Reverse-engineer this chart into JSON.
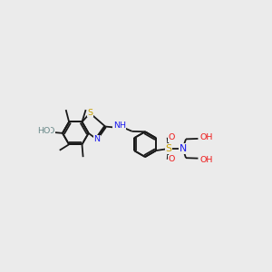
{
  "bg_color": "#ebebeb",
  "bond_color": "#1a1a1a",
  "bond_lw": 1.3,
  "colors": {
    "N": "#1a1aee",
    "O": "#ee1a1a",
    "S": "#c8a000",
    "H": "#6a8a8a"
  },
  "fs": 6.8,
  "xlim": [
    0,
    10
  ],
  "ylim": [
    0,
    10
  ]
}
